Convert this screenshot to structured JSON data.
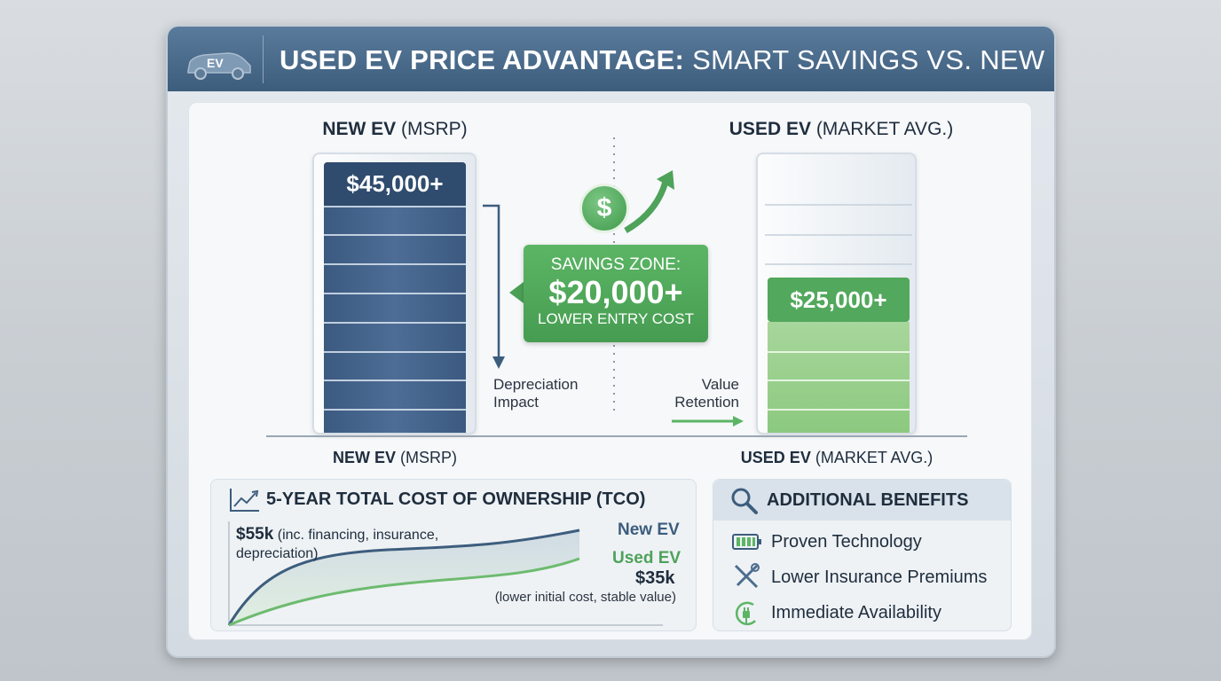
{
  "header": {
    "icon_label": "EV",
    "title_bold": "USED EV PRICE ADVANTAGE:",
    "title_light": "SMART SAVINGS VS. NEW"
  },
  "new_ev": {
    "label_bold": "NEW EV",
    "label_light": "(MSRP)",
    "price": "$45,000+",
    "note_line1": "Depreciation",
    "note_line2": "Impact"
  },
  "used_ev": {
    "label_bold": "USED EV",
    "label_light": "(MARKET AVG.)",
    "price": "$25,000+",
    "note_line1": "Value",
    "note_line2": "Retention"
  },
  "savings": {
    "line1": "SAVINGS ZONE:",
    "amount": "$20,000+",
    "line3": "LOWER ENTRY COST",
    "icon_symbol": "$"
  },
  "axis_labels": {
    "new_bold": "NEW EV",
    "new_light": "(MSRP)",
    "used_bold": "USED EV",
    "used_light": "(MARKET AVG.)"
  },
  "colors": {
    "navy": "#3d5d7d",
    "green": "#52a85c"
  },
  "tco": {
    "title": "5-YEAR TOTAL COST OF OWNERSHIP (TCO)",
    "new_value": "$55k",
    "new_note_1": "(inc. financing, insurance,",
    "new_note_2": "depreciation)",
    "new_label": "New EV",
    "used_label": "Used EV",
    "used_value": "$35k",
    "used_note": "(lower initial cost, stable value)"
  },
  "benefits": {
    "title": "ADDITIONAL BENEFITS",
    "items": [
      {
        "icon": "battery-icon",
        "label": "Proven Technology"
      },
      {
        "icon": "tools-icon",
        "label": "Lower Insurance Premiums"
      },
      {
        "icon": "plug-icon",
        "label": "Immediate Availability"
      }
    ]
  }
}
